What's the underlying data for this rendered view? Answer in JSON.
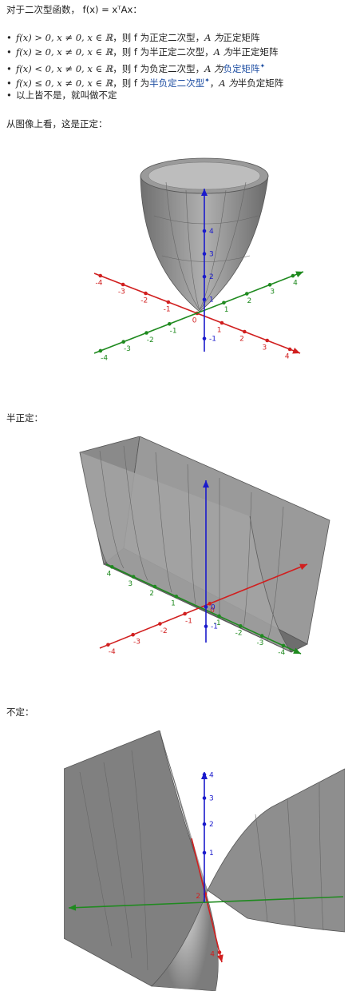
{
  "intro": "对于二次型函数， f(x) = xᵀAx：",
  "items": [
    {
      "cond": "f(x) > 0, x ≠ 0, x ∈ ℝ",
      "mid": "，则 f 为",
      "type": "正定二次型",
      "sep": "，",
      "mat": "A 为",
      "mtype": "正定矩阵",
      "type_link": false,
      "mtype_link": false
    },
    {
      "cond": "f(x) ≥ 0, x ≠ 0, x ∈ ℝ",
      "mid": "，则 f 为",
      "type": "半正定二次型",
      "sep": "，",
      "mat": "A 为",
      "mtype": "半正定矩阵",
      "type_link": false,
      "mtype_link": false
    },
    {
      "cond": "f(x) < 0, x ≠ 0, x ∈ ℝ",
      "mid": "，则 f 为",
      "type": "负定二次型",
      "sep": "，",
      "mat": "A 为",
      "mtype": "负定矩阵",
      "type_link": false,
      "mtype_link": true
    },
    {
      "cond": "f(x) ≤ 0, x ≠ 0, x ∈ ℝ",
      "mid": "，则 f 为",
      "type": "半负定二次型",
      "sep": "，",
      "mat": "A 为",
      "mtype": "半负定矩阵",
      "type_link": true,
      "mtype_link": false
    },
    {
      "text": "以上皆不是，就叫做不定"
    }
  ],
  "captions": {
    "positive": "从图像上看，这是正定：",
    "semi": "半正定：",
    "indefinite": "不定："
  },
  "link_star": "✦",
  "plot_colors": {
    "x_axis": "#d11f1f",
    "y_axis": "#1f8a1f",
    "z_axis": "#1a1acc",
    "surface": "#8c8c8c"
  },
  "plots": {
    "positive": {
      "x_ticks": [
        "-4",
        "-3",
        "-2",
        "-1",
        "0",
        "1",
        "2",
        "3",
        "4"
      ],
      "y_ticks": [
        "-4",
        "-3",
        "-2",
        "-1",
        "1",
        "2",
        "3",
        "4"
      ],
      "z_ticks": [
        "-1",
        "1",
        "2",
        "3",
        "4"
      ]
    },
    "semi": {
      "x_ticks": [
        "-4",
        "-3",
        "-2",
        "-1",
        "0"
      ],
      "y_ticks": [
        "4",
        "3",
        "2",
        "1",
        "-1",
        "-2",
        "-3",
        "-4"
      ],
      "z_ticks": [
        "-1",
        "0"
      ]
    },
    "indefinite": {
      "x_ticks": [
        "2",
        "4"
      ],
      "z_ticks": [
        "1",
        "2",
        "3",
        "4"
      ]
    }
  }
}
